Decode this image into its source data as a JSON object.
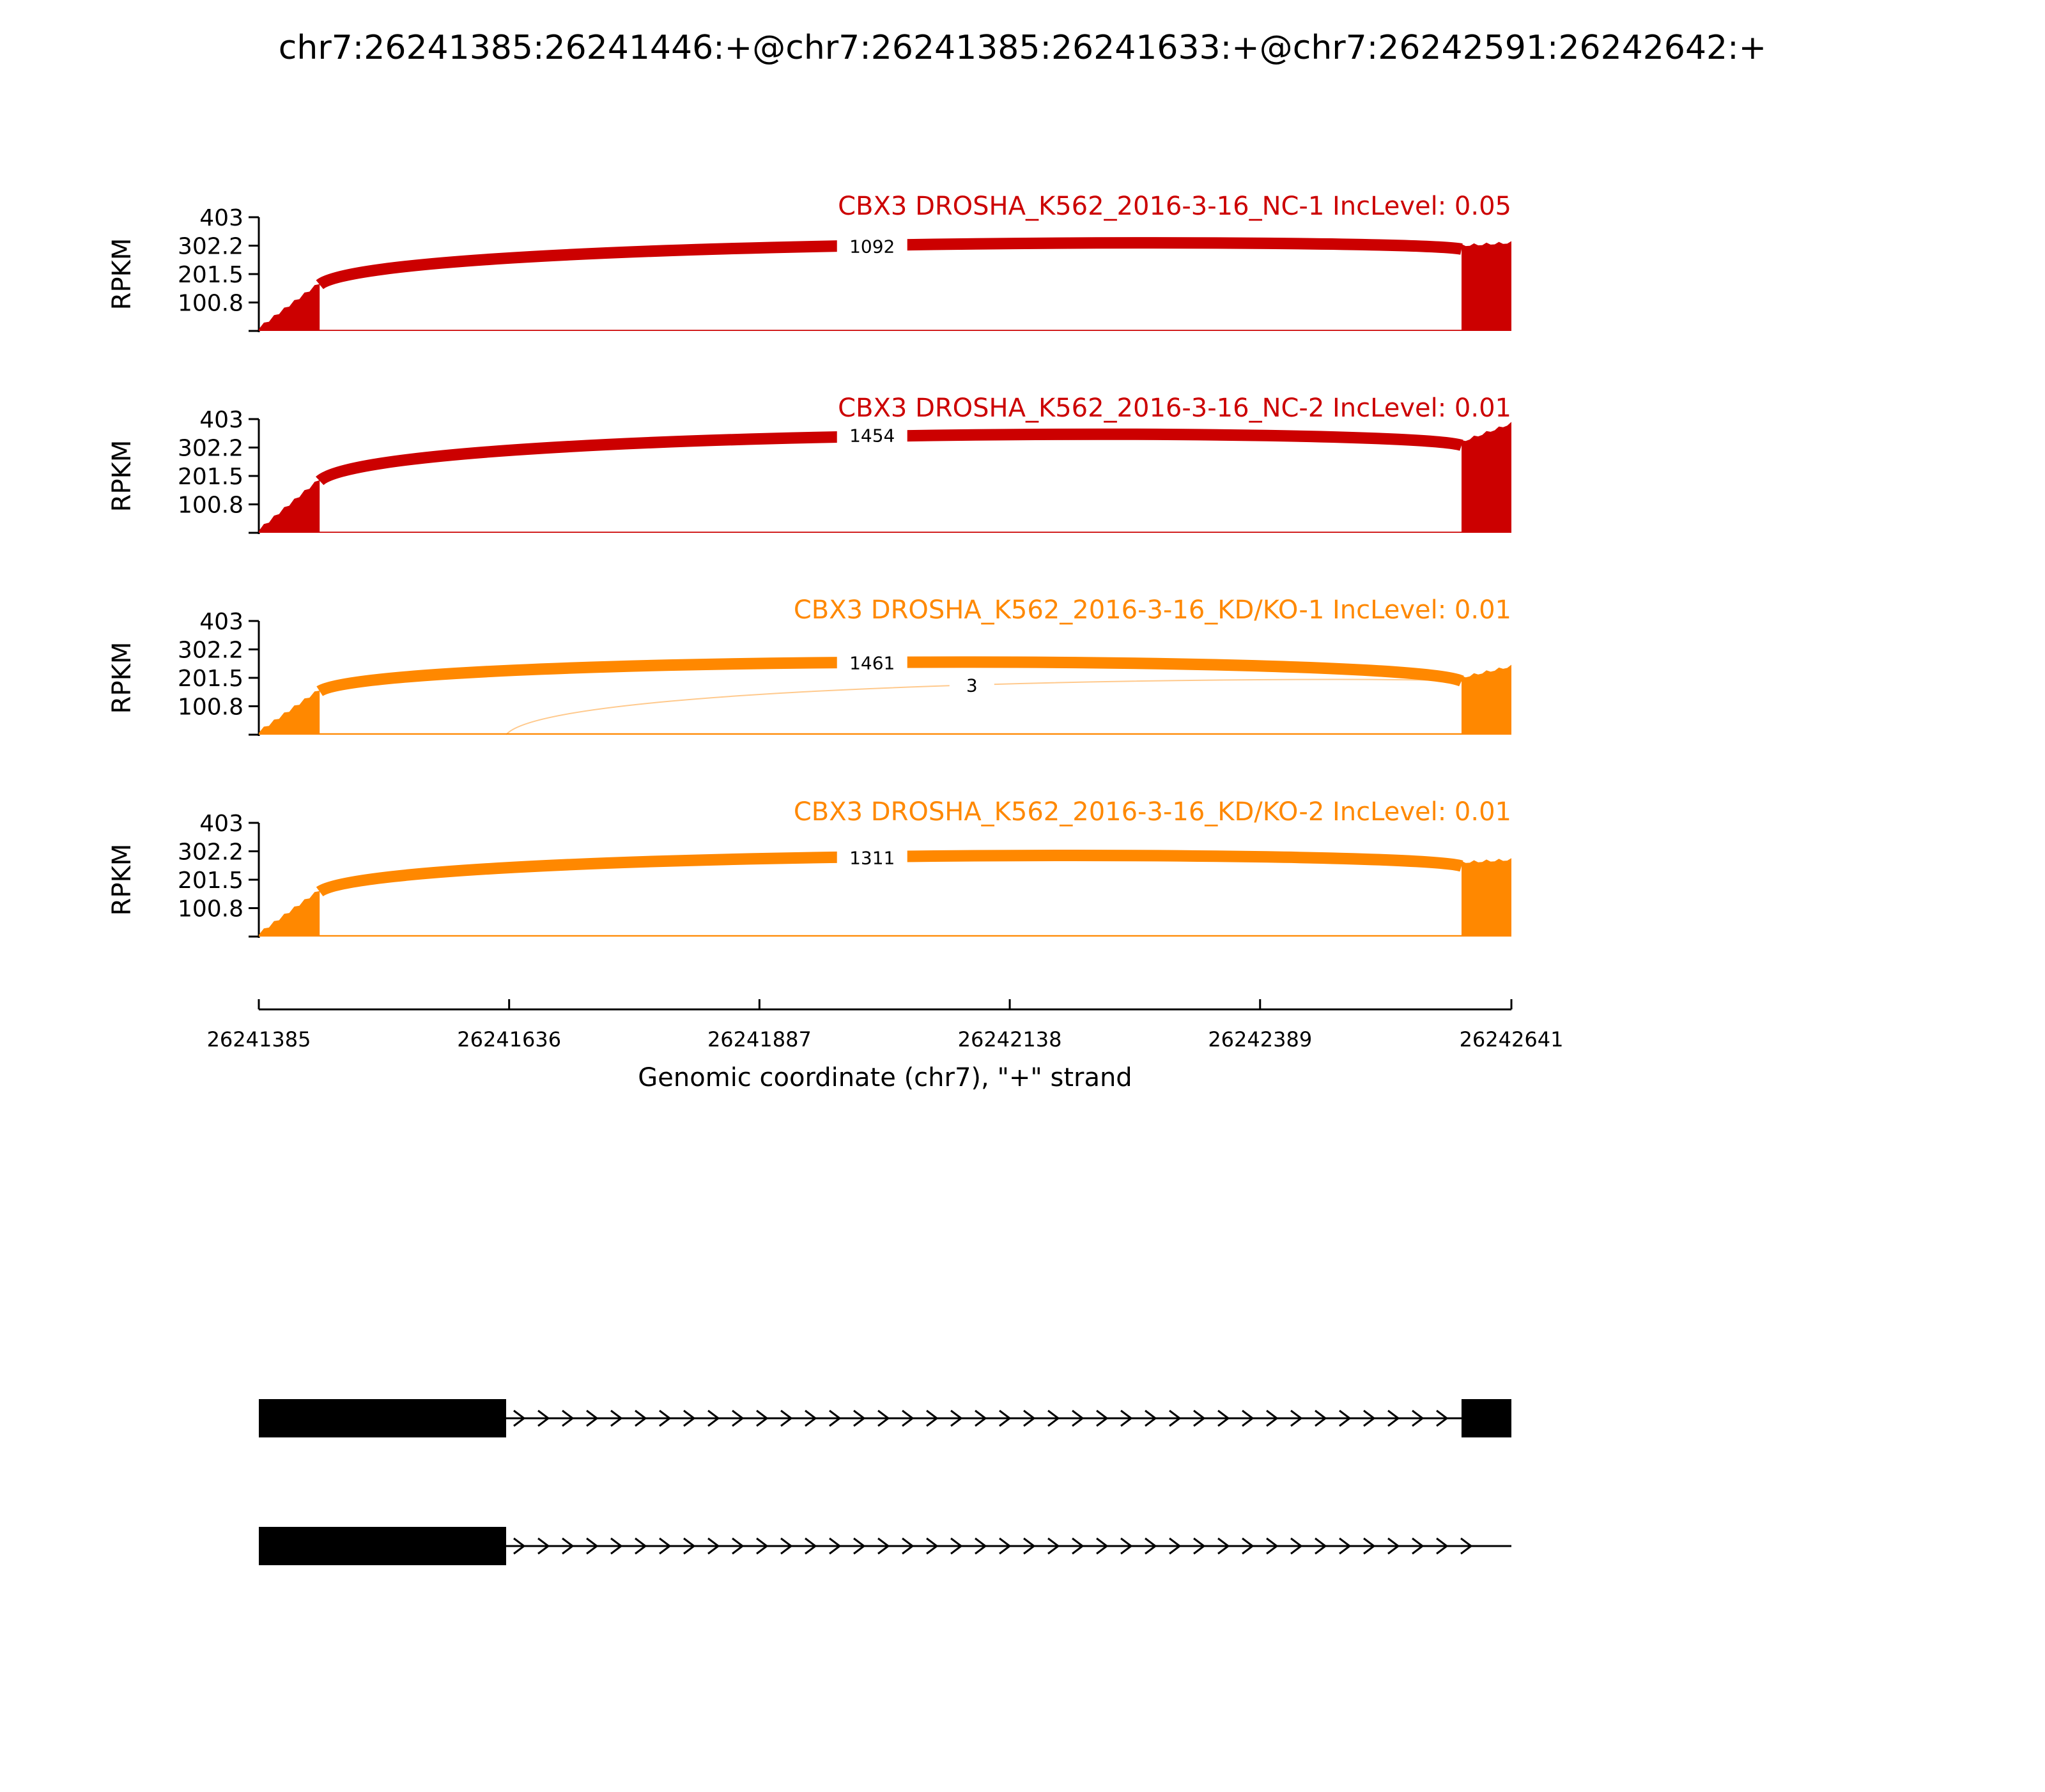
{
  "chart_data": {
    "type": "sashimi",
    "title": "chr7:26241385:26241446:+@chr7:26241385:26241633:+@chr7:26242591:26242642:+",
    "xlabel": "Genomic coordinate (chr7), \"+\" strand",
    "xlim": [
      26241385,
      26242641
    ],
    "xticks": [
      "26241385",
      "26241636",
      "26241887",
      "26242138",
      "26242389",
      "26242641"
    ],
    "ylabel": "RPKM",
    "ylim": [
      0,
      403
    ],
    "yticks": [
      "100.8",
      "201.5",
      "302.2",
      "403"
    ],
    "colors": {
      "NC": "#cc0000",
      "KD": "#ff8800",
      "gene": "#000000"
    },
    "samples": [
      {
        "label": "CBX3 DROSHA_K562_2016-3-16_NC-1 IncLevel: 0.05",
        "group": "NC",
        "exon_levels": {
          "exon1": [
            10,
            170
          ],
          "exon2": [
            300,
            310
          ]
        },
        "intron_level": 4,
        "junctions": [
          {
            "start": 26241446,
            "end": 26242591,
            "count": "1092",
            "label_at": 26242000,
            "label_rpkm": 300
          }
        ]
      },
      {
        "label": "CBX3 DROSHA_K562_2016-3-16_NC-2 IncLevel: 0.01",
        "group": "NC",
        "exon_levels": {
          "exon1": [
            10,
            190
          ],
          "exon2": [
            320,
            385
          ]
        },
        "intron_level": 4,
        "junctions": [
          {
            "start": 26241446,
            "end": 26242591,
            "count": "1454",
            "label_at": 26242000,
            "label_rpkm": 345
          }
        ]
      },
      {
        "label": "CBX3 DROSHA_K562_2016-3-16_KD/KO-1 IncLevel: 0.01",
        "group": "KD",
        "exon_levels": {
          "exon1": [
            10,
            160
          ],
          "exon2": [
            200,
            240
          ]
        },
        "intron_level": 5,
        "junctions": [
          {
            "start": 26241446,
            "end": 26242591,
            "count": "1461",
            "label_at": 26242000,
            "label_rpkm": 255
          },
          {
            "start": 26241633,
            "end": 26242591,
            "count": "3",
            "label_at": 26242100,
            "label_rpkm": 175
          }
        ]
      },
      {
        "label": "CBX3 DROSHA_K562_2016-3-16_KD/KO-2 IncLevel: 0.01",
        "group": "KD",
        "exon_levels": {
          "exon1": [
            10,
            165
          ],
          "exon2": [
            260,
            270
          ]
        },
        "intron_level": 5,
        "junctions": [
          {
            "start": 26241446,
            "end": 26242591,
            "count": "1311",
            "label_at": 26242000,
            "label_rpkm": 280
          }
        ]
      }
    ],
    "transcripts": [
      {
        "exons": [
          [
            26241385,
            26241633
          ],
          [
            26242591,
            26242641
          ]
        ],
        "strand": "+"
      },
      {
        "exons": [
          [
            26241385,
            26241633
          ]
        ],
        "strand": "+",
        "line_end": 26242641
      }
    ]
  }
}
